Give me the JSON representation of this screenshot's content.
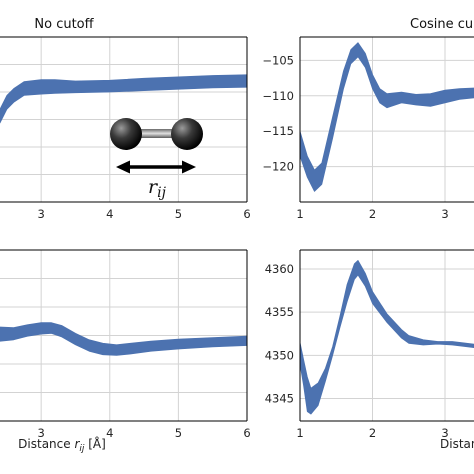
{
  "colors": {
    "band": "#4c72b0",
    "grid": "#d3d3d3",
    "axes": "#000000",
    "background": "#ffffff"
  },
  "chart_data": [
    {
      "id": "top-left",
      "type": "area",
      "title": "No cutoff",
      "xlabel": "",
      "ylabel": "",
      "xlim": [
        2.4,
        6.0
      ],
      "xticks": [
        3,
        4,
        5,
        6
      ],
      "ylim": [
        -126,
        -102
      ],
      "yticks": [],
      "grid": true,
      "band": [
        {
          "x": 2.4,
          "low": -114.5,
          "high": -112.5
        },
        {
          "x": 2.5,
          "low": -112.5,
          "high": -110.5
        },
        {
          "x": 2.6,
          "low": -111.5,
          "high": -109.5
        },
        {
          "x": 2.75,
          "low": -110.5,
          "high": -108.5
        },
        {
          "x": 3.0,
          "low": -110.3,
          "high": -108.2
        },
        {
          "x": 3.2,
          "low": -110.2,
          "high": -108.2
        },
        {
          "x": 3.5,
          "low": -110.1,
          "high": -108.4
        },
        {
          "x": 4.0,
          "low": -110.0,
          "high": -108.3
        },
        {
          "x": 4.5,
          "low": -109.8,
          "high": -108.0
        },
        {
          "x": 5.0,
          "low": -109.6,
          "high": -107.8
        },
        {
          "x": 5.5,
          "low": -109.4,
          "high": -107.6
        },
        {
          "x": 6.0,
          "low": -109.3,
          "high": -107.5
        }
      ],
      "inset": {
        "label": "r",
        "label_subscript": "ij"
      }
    },
    {
      "id": "top-right",
      "type": "area",
      "title": "Cosine cu",
      "xlabel": "",
      "ylabel": "",
      "xlim": [
        1.0,
        3.4
      ],
      "xticks": [
        1,
        2,
        3
      ],
      "ylim": [
        -125.0,
        -101.7
      ],
      "yticks": [
        -105,
        -110,
        -115,
        -120
      ],
      "grid": true,
      "band": [
        {
          "x": 1.0,
          "low": -118.5,
          "high": -115.0
        },
        {
          "x": 1.1,
          "low": -121.5,
          "high": -118.5
        },
        {
          "x": 1.2,
          "low": -123.5,
          "high": -120.5
        },
        {
          "x": 1.3,
          "low": -122.5,
          "high": -119.5
        },
        {
          "x": 1.45,
          "low": -116.0,
          "high": -113.0
        },
        {
          "x": 1.6,
          "low": -109.0,
          "high": -106.5
        },
        {
          "x": 1.7,
          "low": -105.5,
          "high": -103.5
        },
        {
          "x": 1.8,
          "low": -104.5,
          "high": -102.5
        },
        {
          "x": 1.9,
          "low": -106.0,
          "high": -104.0
        },
        {
          "x": 2.0,
          "low": -109.0,
          "high": -107.0
        },
        {
          "x": 2.1,
          "low": -111.0,
          "high": -109.0
        },
        {
          "x": 2.2,
          "low": -111.7,
          "high": -109.7
        },
        {
          "x": 2.4,
          "low": -111.0,
          "high": -109.5
        },
        {
          "x": 2.6,
          "low": -111.3,
          "high": -109.8
        },
        {
          "x": 2.8,
          "low": -111.5,
          "high": -109.7
        },
        {
          "x": 3.0,
          "low": -111.0,
          "high": -109.2
        },
        {
          "x": 3.2,
          "low": -110.5,
          "high": -109.0
        },
        {
          "x": 3.4,
          "low": -110.3,
          "high": -108.9
        }
      ]
    },
    {
      "id": "bottom-left",
      "type": "area",
      "title": "",
      "xlabel": "Distance r_ij [Å]",
      "ylabel": "",
      "xlim": [
        2.4,
        6.0
      ],
      "xticks": [
        3,
        4,
        5,
        6
      ],
      "ylim": [
        -12,
        12
      ],
      "yticks": [],
      "grid": true,
      "band": [
        {
          "x": 2.4,
          "low": -0.8,
          "high": 1.2
        },
        {
          "x": 2.6,
          "low": -0.6,
          "high": 1.1
        },
        {
          "x": 2.8,
          "low": -0.1,
          "high": 1.5
        },
        {
          "x": 3.0,
          "low": 0.2,
          "high": 1.8
        },
        {
          "x": 3.15,
          "low": 0.3,
          "high": 1.8
        },
        {
          "x": 3.3,
          "low": -0.2,
          "high": 1.4
        },
        {
          "x": 3.5,
          "low": -1.3,
          "high": 0.3
        },
        {
          "x": 3.7,
          "low": -2.2,
          "high": -0.6
        },
        {
          "x": 3.9,
          "low": -2.7,
          "high": -1.1
        },
        {
          "x": 4.1,
          "low": -2.8,
          "high": -1.3
        },
        {
          "x": 4.3,
          "low": -2.6,
          "high": -1.1
        },
        {
          "x": 4.6,
          "low": -2.2,
          "high": -0.8
        },
        {
          "x": 5.0,
          "low": -1.9,
          "high": -0.5
        },
        {
          "x": 5.5,
          "low": -1.6,
          "high": -0.3
        },
        {
          "x": 6.0,
          "low": -1.4,
          "high": -0.1
        }
      ]
    },
    {
      "id": "bottom-right",
      "type": "area",
      "title": "",
      "xlabel": "Distan",
      "ylabel": "",
      "xlim": [
        1.0,
        3.4
      ],
      "xticks": [
        1,
        2,
        3
      ],
      "ylim": [
        4342.4,
        4362.2
      ],
      "yticks": [
        4345,
        4350,
        4355,
        4360
      ],
      "grid": true,
      "band": [
        {
          "x": 1.0,
          "low": 4349.0,
          "high": 4351.5
        },
        {
          "x": 1.05,
          "low": 4346.5,
          "high": 4349.5
        },
        {
          "x": 1.1,
          "low": 4343.5,
          "high": 4347.5
        },
        {
          "x": 1.15,
          "low": 4343.2,
          "high": 4346.2
        },
        {
          "x": 1.25,
          "low": 4344.2,
          "high": 4346.8
        },
        {
          "x": 1.35,
          "low": 4347.0,
          "high": 4348.5
        },
        {
          "x": 1.45,
          "low": 4350.0,
          "high": 4351.0
        },
        {
          "x": 1.55,
          "low": 4353.2,
          "high": 4354.5
        },
        {
          "x": 1.65,
          "low": 4356.2,
          "high": 4358.2
        },
        {
          "x": 1.75,
          "low": 4358.8,
          "high": 4360.6
        },
        {
          "x": 1.8,
          "low": 4359.3,
          "high": 4361.0
        },
        {
          "x": 1.9,
          "low": 4358.0,
          "high": 4359.5
        },
        {
          "x": 2.0,
          "low": 4356.0,
          "high": 4357.4
        },
        {
          "x": 2.2,
          "low": 4353.8,
          "high": 4354.8
        },
        {
          "x": 2.4,
          "low": 4352.0,
          "high": 4353.0
        },
        {
          "x": 2.5,
          "low": 4351.4,
          "high": 4352.3
        },
        {
          "x": 2.7,
          "low": 4351.2,
          "high": 4351.8
        },
        {
          "x": 2.9,
          "low": 4351.3,
          "high": 4351.6
        },
        {
          "x": 3.1,
          "low": 4351.2,
          "high": 4351.6
        },
        {
          "x": 3.3,
          "low": 4351.0,
          "high": 4351.4
        },
        {
          "x": 3.4,
          "low": 4350.9,
          "high": 4351.3
        }
      ]
    }
  ]
}
